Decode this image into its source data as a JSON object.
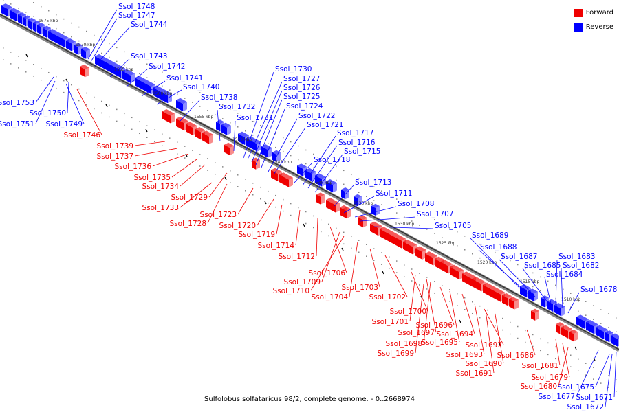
{
  "colors": {
    "forward": "#ef0000",
    "reverse": "#0000ff",
    "axis": "#555555"
  },
  "legend": [
    {
      "label": "Forward",
      "color": "#ef0000"
    },
    {
      "label": "Reverse",
      "color": "#0000ff"
    }
  ],
  "caption": "Sulfolobus solfataricus 98/2, complete genome. - 0..2668974",
  "ticks": [
    "1575 kbp",
    "1570 kbp",
    "1565 kbp",
    "1560 kbp",
    "1555 kbp",
    "1550 kbp",
    "1545 kbp",
    "1540 kbp",
    "1535 kbp",
    "1530 kbp",
    "1525 kbp",
    "1520 kbp",
    "1515 kbp",
    "1510 kbp"
  ],
  "genes_reverse": [
    "Ssol_1748",
    "Ssol_1747",
    "Ssol_1744",
    "Ssol_1743",
    "Ssol_1742",
    "Ssol_1741",
    "Ssol_1740",
    "Ssol_1738",
    "Ssol_1732",
    "Ssol_1731",
    "Ssol_1730",
    "Ssol_1727",
    "Ssol_1726",
    "Ssol_1725",
    "Ssol_1724",
    "Ssol_1722",
    "Ssol_1721",
    "Ssol_1717",
    "Ssol_1716",
    "Ssol_1715",
    "Ssol_1718",
    "Ssol_1713",
    "Ssol_1711",
    "Ssol_1708",
    "Ssol_1707",
    "Ssol_1705",
    "Ssol_1689",
    "Ssol_1688",
    "Ssol_1687",
    "Ssol_1685",
    "Ssol_1683",
    "Ssol_1682",
    "Ssol_1684",
    "Ssol_1678",
    "Ssol_1753",
    "Ssol_1750",
    "Ssol_1751",
    "Ssol_1749",
    "Ssol_1675",
    "Ssol_1677",
    "Ssol_1671",
    "Ssol_1672"
  ],
  "genes_forward": [
    "Ssol_1746",
    "Ssol_1739",
    "Ssol_1737",
    "Ssol_1736",
    "Ssol_1735",
    "Ssol_1734",
    "Ssol_1729",
    "Ssol_1733",
    "Ssol_1723",
    "Ssol_1728",
    "Ssol_1720",
    "Ssol_1719",
    "Ssol_1714",
    "Ssol_1712",
    "Ssol_1706",
    "Ssol_1709",
    "Ssol_1710",
    "Ssol_1704",
    "Ssol_1703",
    "Ssol_1702",
    "Ssol_1700",
    "Ssol_1701",
    "Ssol_1696",
    "Ssol_1697",
    "Ssol_1694",
    "Ssol_1698",
    "Ssol_1695",
    "Ssol_1699",
    "Ssol_1692",
    "Ssol_1693",
    "Ssol_1690",
    "Ssol_1691",
    "Ssol_1686",
    "Ssol_1681",
    "Ssol_1679",
    "Ssol_1680"
  ]
}
